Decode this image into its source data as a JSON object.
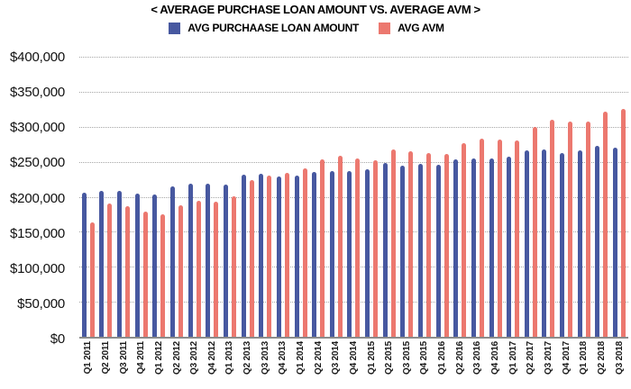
{
  "title": "< AVERAGE PURCHASE LOAN AMOUNT VS. AVERAGE AVM >",
  "legend": {
    "items": [
      {
        "label": "AVG PURCHAASE LOAN AMOUNT",
        "color": "#4758A0"
      },
      {
        "label": "AVG AVM",
        "color": "#EC786F"
      }
    ]
  },
  "colors": {
    "loan_bar": "#4758A0",
    "avm_bar": "#EC786F",
    "gridline": "#a6a6a6",
    "axis_line": "#8c8c8c",
    "text": "#000000"
  },
  "chart_data": {
    "type": "bar",
    "title": "< AVERAGE PURCHASE LOAN AMOUNT VS. AVERAGE AVM >",
    "xlabel": "",
    "ylabel": "",
    "ylim": [
      0,
      400000
    ],
    "ytick_step": 50000,
    "ytick_labels": [
      "$0",
      "$50,000",
      "$100,000",
      "$150,000",
      "$200,000",
      "$250,000",
      "$300,000",
      "$350,000",
      "$400,000"
    ],
    "grid": "horizontal-dotted",
    "legend_position": "top-center",
    "categories": [
      "Q1 2011",
      "Q2 2011",
      "Q3 2011",
      "Q4 2011",
      "Q1 2012",
      "Q2 2012",
      "Q3 2012",
      "Q4 2012",
      "Q1 2013",
      "Q2 2013",
      "Q3 2013",
      "Q4 2013",
      "Q1 2014",
      "Q2 2014",
      "Q3 2014",
      "Q4 2014",
      "Q1 2015",
      "Q2 2015",
      "Q3 2015",
      "Q4 2015",
      "Q1 2016",
      "Q2 2016",
      "Q3 2016",
      "Q4 2016",
      "Q1 2017",
      "Q2 2017",
      "Q3 2017",
      "Q4 2017",
      "Q1 2018",
      "Q2 2018",
      "Q3 2018"
    ],
    "series": [
      {
        "name": "AVG PURCHAASE LOAN AMOUNT",
        "color": "#4758A0",
        "values": [
          206000,
          208000,
          209000,
          204000,
          203000,
          215000,
          219000,
          219000,
          217000,
          231000,
          233000,
          229000,
          230000,
          236000,
          237000,
          237000,
          239000,
          248000,
          245000,
          247000,
          246000,
          253000,
          255000,
          255000,
          257000,
          266000,
          267000,
          263000,
          266000,
          273000,
          270000
        ]
      },
      {
        "name": "AVG AVM",
        "color": "#EC786F",
        "values": [
          164000,
          190000,
          186000,
          179000,
          175000,
          188000,
          194000,
          193000,
          201000,
          224000,
          230000,
          234000,
          240000,
          254000,
          259000,
          255000,
          252000,
          267000,
          265000,
          263000,
          261000,
          276000,
          283000,
          282000,
          280000,
          300000,
          310000,
          307000,
          308000,
          321000,
          326000
        ]
      }
    ]
  }
}
